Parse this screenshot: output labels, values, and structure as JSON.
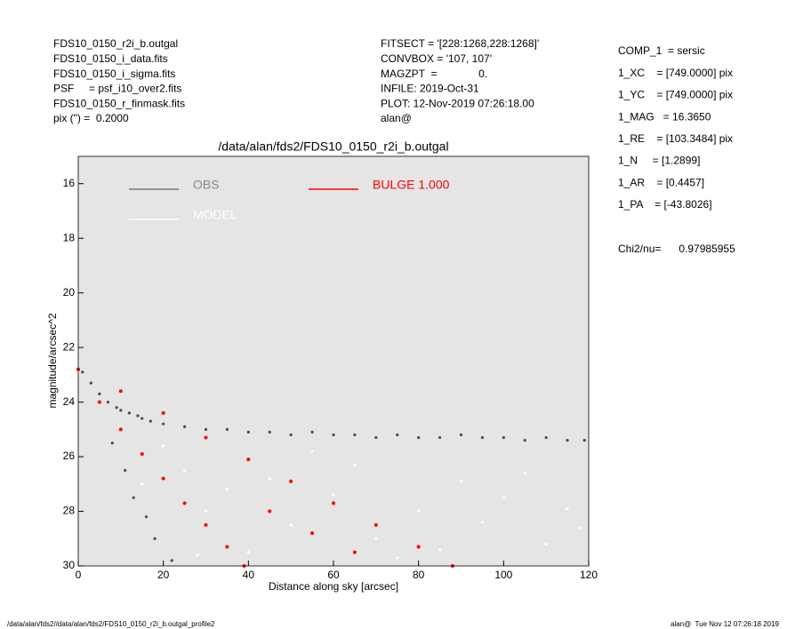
{
  "header": {
    "left": [
      "FDS10_0150_r2i_b.outgal",
      "FDS10_0150_i_data.fits",
      "FDS10_0150_i_sigma.fits",
      "PSF     = psf_i10_over2.fits",
      "FDS10_0150_r_finmask.fits",
      "pix (\") =  0.2000"
    ],
    "center": [
      "FITSECT = '[228:1268,228:1268]'",
      "CONVBOX = '107, 107'",
      "MAGZPT  =              0.",
      "INFILE: 2019-Oct-31",
      "PLOT: 12-Nov-2019 07:26:18.00",
      "alan@"
    ],
    "right": [
      "COMP_1  = sersic",
      "1_XC    = [749.0000] pix",
      "1_YC    = [749.0000] pix",
      "1_MAG   = 16.3650",
      "1_RE    = [103.3484] pix",
      "1_N     = [1.2899]",
      "1_AR    = [0.4457]",
      "1_PA    = [-43.8026]",
      "Chi2/nu=      0.97985955"
    ]
  },
  "footer": {
    "left": "/data/alan/fds2//data/alan/fds2/FDS10_0150_r2i_b.outgal_profile2",
    "right": "alan@  Tue Nov 12 07:26:18 2019"
  },
  "chart_data": {
    "type": "scatter",
    "title": "/data/alan/fds2/FDS10_0150_r2i_b.outgal",
    "xlabel": "Distance along sky [arcsec]",
    "ylabel": "magnitude/arcsec^2",
    "xlim": [
      0,
      120
    ],
    "ylim": [
      30,
      15
    ],
    "xticks": [
      0,
      20,
      40,
      60,
      80,
      100,
      120
    ],
    "yticks": [
      16,
      18,
      20,
      22,
      24,
      26,
      28,
      30
    ],
    "series": [
      {
        "name": "OBS",
        "color": "#4a4a4a",
        "x": [
          1,
          3,
          5,
          7,
          9,
          10,
          12,
          14,
          15,
          17,
          20,
          25,
          30,
          35,
          40,
          45,
          50,
          55,
          60,
          65,
          70,
          75,
          80,
          85,
          90,
          95,
          100,
          105,
          110,
          115,
          119,
          8,
          11,
          13,
          16,
          18,
          22
        ],
        "y": [
          22.9,
          23.3,
          23.7,
          24,
          24.2,
          24.3,
          24.4,
          24.5,
          24.6,
          24.7,
          24.8,
          24.9,
          25,
          25,
          25.1,
          25.1,
          25.2,
          25.1,
          25.2,
          25.2,
          25.3,
          25.2,
          25.3,
          25.3,
          25.2,
          25.3,
          25.3,
          25.4,
          25.3,
          25.4,
          25.4,
          25.5,
          26.5,
          27.5,
          28.2,
          29,
          29.8
        ]
      },
      {
        "name": "MODEL",
        "color": "#ffffff",
        "x": [
          15,
          25,
          30,
          35,
          45,
          50,
          60,
          70,
          80,
          90,
          100,
          110,
          118,
          40,
          55,
          65,
          75,
          85,
          95,
          105,
          115,
          20,
          28
        ],
        "y": [
          27,
          26.5,
          28,
          27.2,
          26.8,
          28.5,
          27.4,
          29,
          28,
          26.9,
          27.5,
          29.2,
          28.6,
          29.5,
          25.8,
          26.3,
          29.7,
          29.4,
          28.4,
          26.6,
          27.9,
          25.6,
          29.6
        ]
      },
      {
        "name": "BULGE 1.000",
        "color": "#ff0000",
        "x": [
          0,
          5,
          10,
          15,
          20,
          25,
          30,
          35,
          39,
          10,
          20,
          30,
          40,
          50,
          60,
          70,
          80,
          88,
          45,
          55,
          65
        ],
        "y": [
          22.8,
          24,
          25,
          25.9,
          26.8,
          27.7,
          28.5,
          29.3,
          30,
          23.6,
          24.4,
          25.3,
          26.1,
          26.9,
          27.7,
          28.5,
          29.3,
          30,
          28,
          28.8,
          29.5
        ]
      }
    ]
  }
}
